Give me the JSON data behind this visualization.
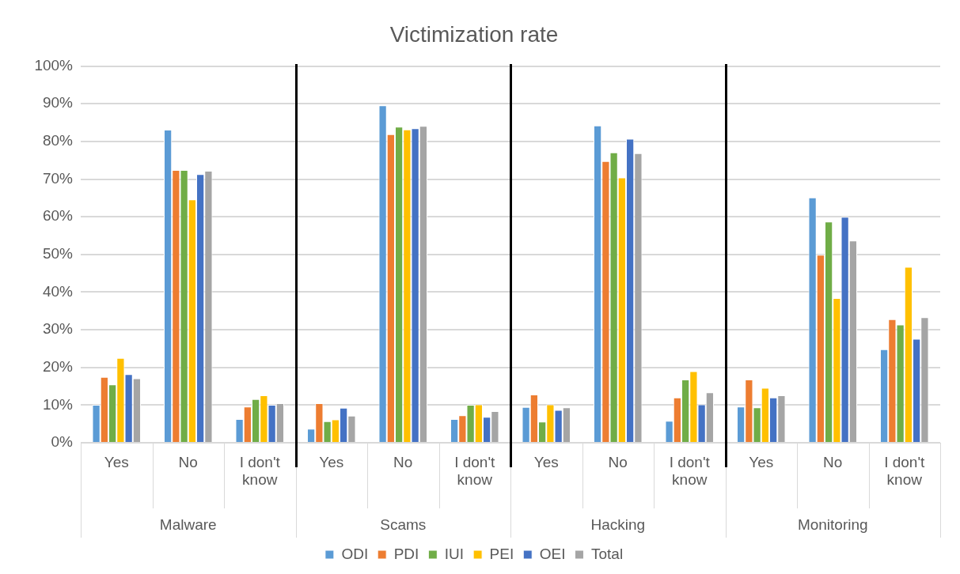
{
  "chart_data": {
    "type": "bar",
    "title": "Victimization rate",
    "categories": [
      "Yes",
      "No",
      "I don't know",
      "Yes",
      "No",
      "I don't know",
      "Yes",
      "No",
      "I don't know",
      "Yes",
      "No",
      "I don't know"
    ],
    "annotations": [
      "Malware",
      "Scams",
      "Hacking",
      "Monitoring"
    ],
    "series": [
      {
        "name": "ODI",
        "color": "#5b9bd5",
        "values": [
          10.1,
          83.1,
          6.3,
          3.7,
          89.6,
          6.3,
          9.5,
          84.2,
          5.8,
          9.6,
          65.1,
          24.8
        ]
      },
      {
        "name": "PDI",
        "color": "#ed7d31",
        "values": [
          17.5,
          72.4,
          9.6,
          10.5,
          81.9,
          7.3,
          12.8,
          74.8,
          12.0,
          16.8,
          49.9,
          32.8
        ]
      },
      {
        "name": "IUI",
        "color": "#70ad47",
        "values": [
          15.5,
          72.4,
          11.6,
          5.7,
          83.9,
          10.1,
          5.6,
          77.1,
          16.8,
          9.4,
          58.7,
          31.4
        ]
      },
      {
        "name": "PEI",
        "color": "#ffc000",
        "values": [
          22.5,
          64.6,
          12.6,
          6.2,
          83.2,
          10.2,
          10.2,
          70.4,
          19.0,
          14.6,
          38.4,
          46.7
        ]
      },
      {
        "name": "OEI",
        "color": "#4472c4",
        "values": [
          18.2,
          71.3,
          10.1,
          9.3,
          83.5,
          6.9,
          8.7,
          80.7,
          10.2,
          12.0,
          60.0,
          27.6
        ]
      },
      {
        "name": "Total",
        "color": "#a5a5a5",
        "values": [
          17.1,
          72.2,
          10.5,
          7.2,
          84.1,
          8.4,
          9.4,
          76.9,
          13.4,
          12.6,
          53.7,
          33.3
        ]
      }
    ],
    "ylim": [
      0,
      100
    ],
    "yticks": [
      {
        "value": 0,
        "label": "0%"
      },
      {
        "value": 10,
        "label": "10%"
      },
      {
        "value": 20,
        "label": "20%"
      },
      {
        "value": 30,
        "label": "30%"
      },
      {
        "value": 40,
        "label": "40%"
      },
      {
        "value": 50,
        "label": "50%"
      },
      {
        "value": 60,
        "label": "60%"
      },
      {
        "value": 70,
        "label": "70%"
      },
      {
        "value": 80,
        "label": "80%"
      },
      {
        "value": 90,
        "label": "90%"
      },
      {
        "value": 100,
        "label": "100%"
      }
    ],
    "grid": "y",
    "legend": "bottom"
  }
}
